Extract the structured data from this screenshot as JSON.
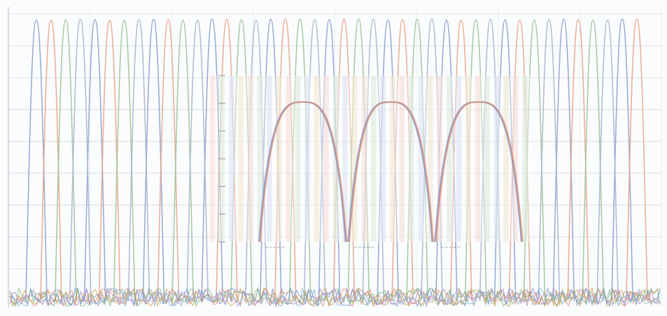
{
  "chart_data": [
    {
      "type": "line",
      "title": "",
      "xlabel": "",
      "ylabel": "",
      "grid": true,
      "legend": "none",
      "peak_count": 42,
      "baseline_noise": true,
      "series": [
        {
          "color": "#8fa3cf",
          "peaks": [
            0,
            4,
            8,
            12,
            16,
            20,
            24,
            28,
            32,
            36,
            40
          ]
        },
        {
          "color": "#e8a58f",
          "peaks": [
            1,
            5,
            9,
            13,
            17,
            21,
            25,
            29,
            33,
            37,
            41
          ]
        },
        {
          "color": "#9ec49a",
          "peaks": [
            2,
            6,
            10,
            14,
            18,
            22,
            26,
            30,
            34,
            38
          ]
        },
        {
          "color": "#a7b6cf",
          "peaks": [
            3,
            7,
            11,
            15,
            19,
            23,
            27,
            31,
            35,
            39
          ]
        }
      ]
    },
    {
      "type": "line",
      "title": "",
      "xlabel": "",
      "ylabel": "",
      "grid": true,
      "legend": "none",
      "inset": true,
      "ylim": [
        0,
        1
      ],
      "arches": [
        {
          "start": 0.0,
          "end": 0.33,
          "peak": 1.0,
          "label": "~~~~~"
        },
        {
          "start": 0.34,
          "end": 0.66,
          "peak": 1.0,
          "label": "~~~~~"
        },
        {
          "start": 0.67,
          "end": 1.0,
          "peak": 1.0,
          "label": "~~~~~"
        }
      ],
      "series_colors": [
        "#7f93c9",
        "#d98f7a"
      ]
    }
  ],
  "palette": {
    "grid": "#c9ced6",
    "background": "#fbfcfd",
    "inset_band_colors": [
      "#f4d7cf",
      "#d8e5d4",
      "#d7def0",
      "#efe4c8"
    ]
  }
}
